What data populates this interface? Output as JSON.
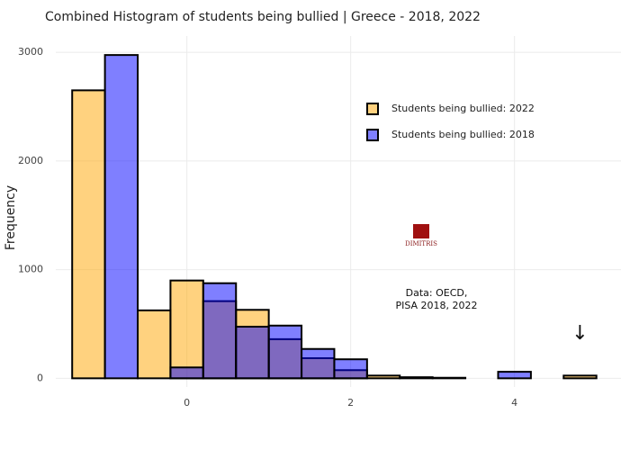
{
  "chart_data": {
    "type": "histogram",
    "title": "Combined Histogram of students being bullied | Greece - 2018, 2022",
    "y_label": "Frequency",
    "bins": [
      -1.4,
      -1.0,
      -0.6,
      -0.2,
      0.2,
      0.6,
      1.0,
      1.4,
      1.8,
      2.2,
      2.6,
      3.0,
      3.4,
      3.8,
      4.2,
      4.6,
      5.0
    ],
    "series": [
      {
        "name": "Students being bullied: 2022",
        "color": "#ffa500",
        "values": [
          2650,
          0,
          625,
          900,
          710,
          630,
          360,
          185,
          75,
          25,
          10,
          5,
          0,
          0,
          0,
          25
        ]
      },
      {
        "name": "Students being bullied: 2018",
        "color": "#0000ff",
        "values": [
          0,
          2975,
          0,
          100,
          875,
          475,
          485,
          270,
          175,
          0,
          0,
          0,
          0,
          60,
          0,
          0
        ]
      }
    ],
    "opacity": 0.5,
    "xlim": [
      -1.6,
      5.3
    ],
    "xticks": [
      0,
      2,
      4
    ],
    "ylim": [
      -80,
      3150
    ],
    "yticks": [
      0,
      1000,
      2000,
      3000
    ],
    "grid": true,
    "legend_position": "top-right",
    "annotations": [
      "Data: OECD,",
      "PISA 2018, 2022",
      "↓"
    ],
    "logo_text": "DIMITRIS"
  }
}
